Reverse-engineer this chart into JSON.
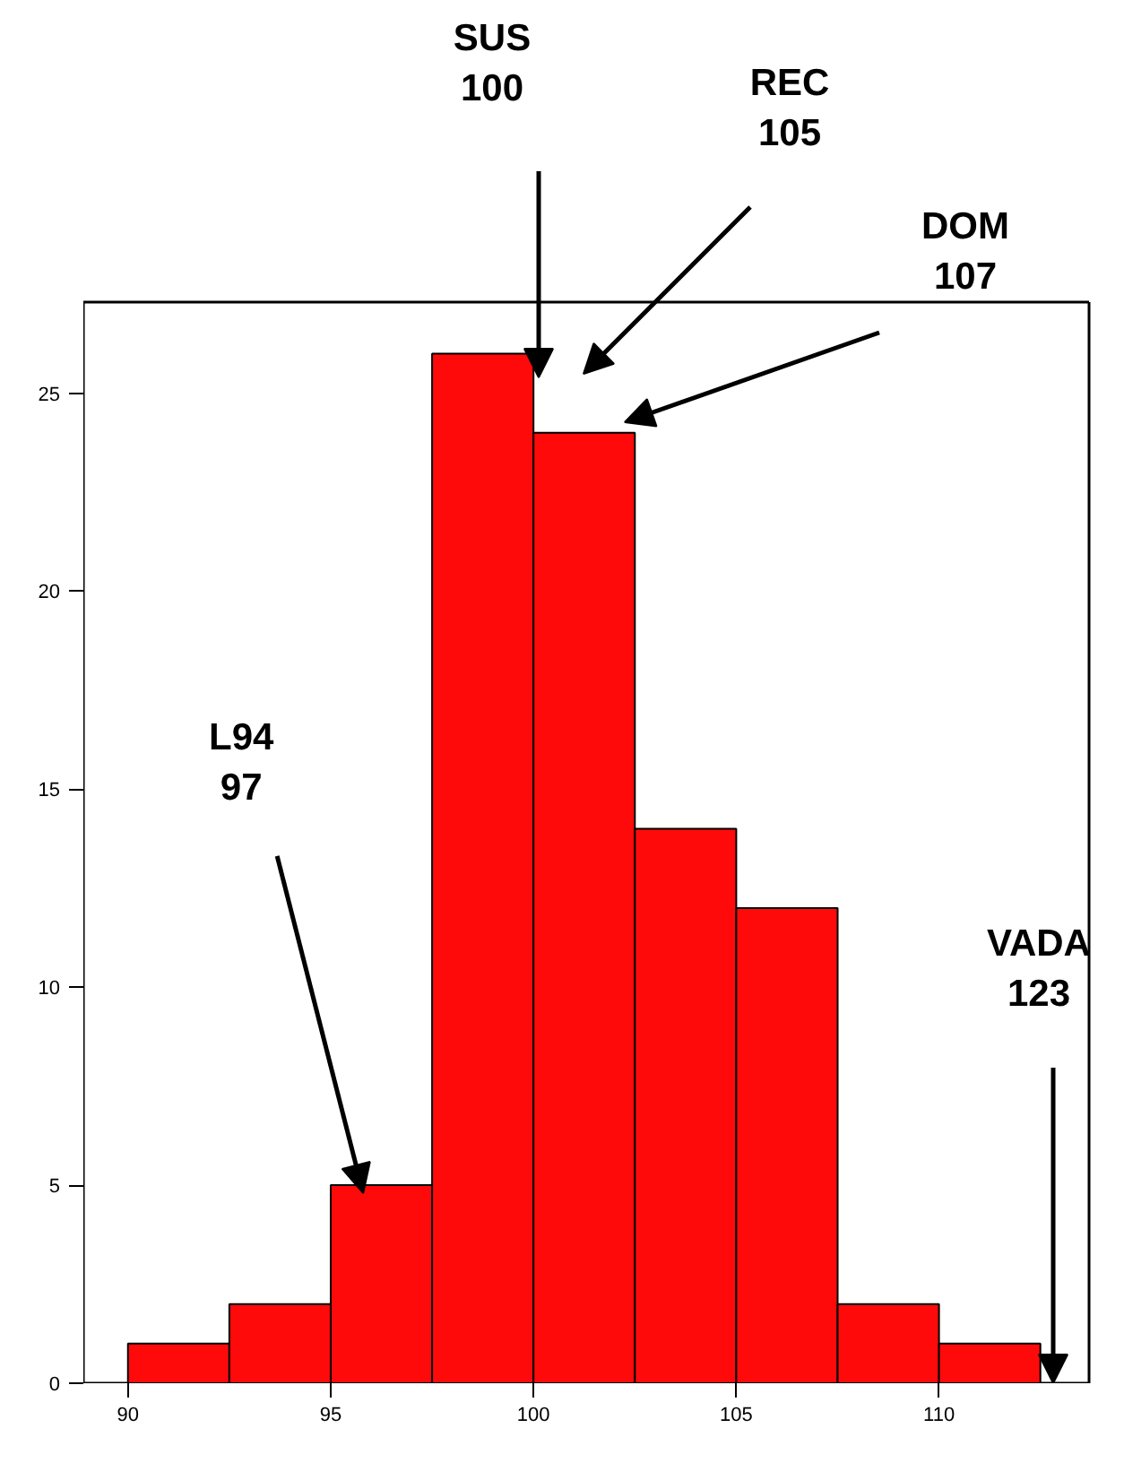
{
  "chart_data": {
    "type": "histogram",
    "bins": [
      90,
      92.5,
      95,
      97.5,
      100,
      102.5,
      105,
      107.5,
      110,
      112.5
    ],
    "values": [
      1,
      2,
      5,
      26,
      24,
      14,
      12,
      2,
      1
    ],
    "color": "#ff0a0a",
    "xlim": [
      88.9,
      113.7
    ],
    "ylim": [
      0,
      27.3
    ],
    "xticks": [
      90,
      95,
      100,
      105,
      110
    ],
    "yticks": [
      0,
      5,
      10,
      15,
      20,
      25
    ],
    "grid": false,
    "annotations": [
      "SUS\n100",
      "REC\n105",
      "DOM\n107",
      {
        "text": "L94\n97",
        "x": 95.8,
        "y": 4.8
      },
      "VADA\n123"
    ]
  }
}
